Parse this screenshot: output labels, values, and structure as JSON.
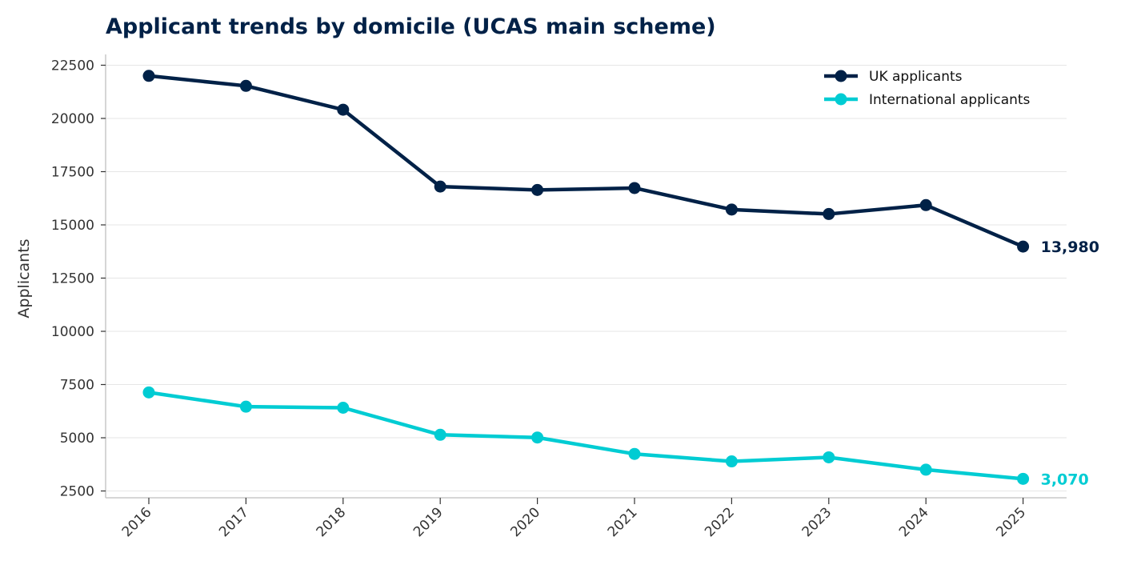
{
  "chart_data": {
    "type": "line",
    "title": "Applicant trends by domicile (UCAS main scheme)",
    "xlabel": "",
    "ylabel": "Applicants",
    "categories": [
      "2016",
      "2017",
      "2018",
      "2019",
      "2020",
      "2021",
      "2022",
      "2023",
      "2024",
      "2025"
    ],
    "yticks": [
      "2500",
      "5000",
      "7500",
      "10000",
      "12500",
      "15000",
      "17500",
      "20000",
      "22500"
    ],
    "ylim": [
      2150,
      23000
    ],
    "grid": "horizontal",
    "legend_position": "top-right",
    "series": [
      {
        "name": "UK applicants",
        "color": "#002147",
        "values": [
          22000,
          21530,
          20410,
          16800,
          16640,
          16730,
          15720,
          15510,
          15930,
          13980
        ],
        "end_label": "13,980"
      },
      {
        "name": "International applicants",
        "color": "#00CCD3",
        "values": [
          7130,
          6460,
          6410,
          5140,
          5010,
          4240,
          3890,
          4080,
          3500,
          3070
        ],
        "end_label": "3,070"
      }
    ],
    "title_color": "#002147"
  }
}
